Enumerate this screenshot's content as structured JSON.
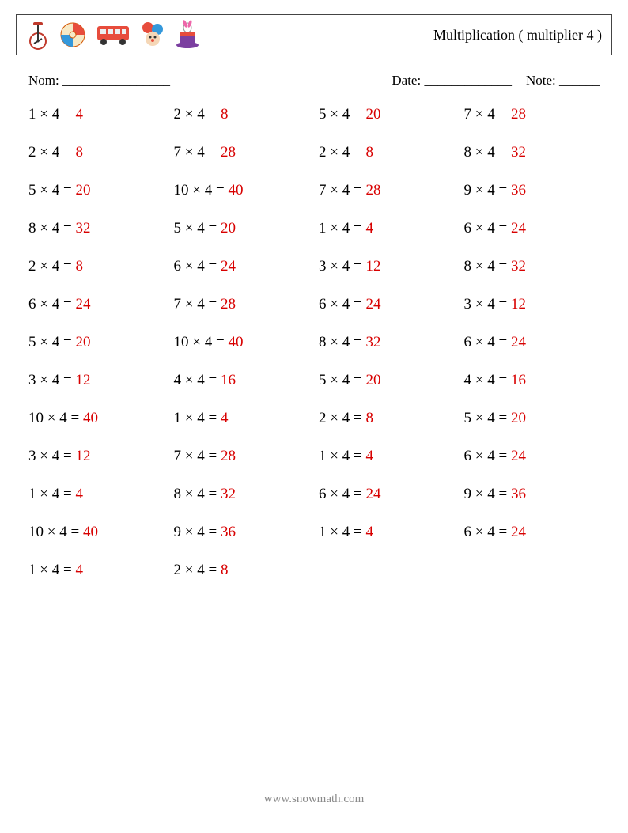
{
  "title": "Multiplication ( multiplier 4 )",
  "labels": {
    "name": "Nom: ________________",
    "date": "Date: _____________",
    "note": "Note: ______"
  },
  "footer": "www.snowmath.com",
  "multiplier": 4,
  "answer_color": "#d80000",
  "text_color": "#000000",
  "font_size": 19,
  "columns": [
    [
      1,
      2,
      5,
      8,
      2,
      6,
      5,
      3,
      10,
      3,
      1,
      10,
      1
    ],
    [
      2,
      7,
      10,
      5,
      6,
      7,
      10,
      4,
      1,
      7,
      8,
      9,
      2
    ],
    [
      5,
      2,
      7,
      1,
      3,
      6,
      8,
      5,
      2,
      1,
      6,
      1
    ],
    [
      7,
      8,
      9,
      6,
      8,
      3,
      6,
      4,
      5,
      6,
      9,
      6
    ]
  ]
}
